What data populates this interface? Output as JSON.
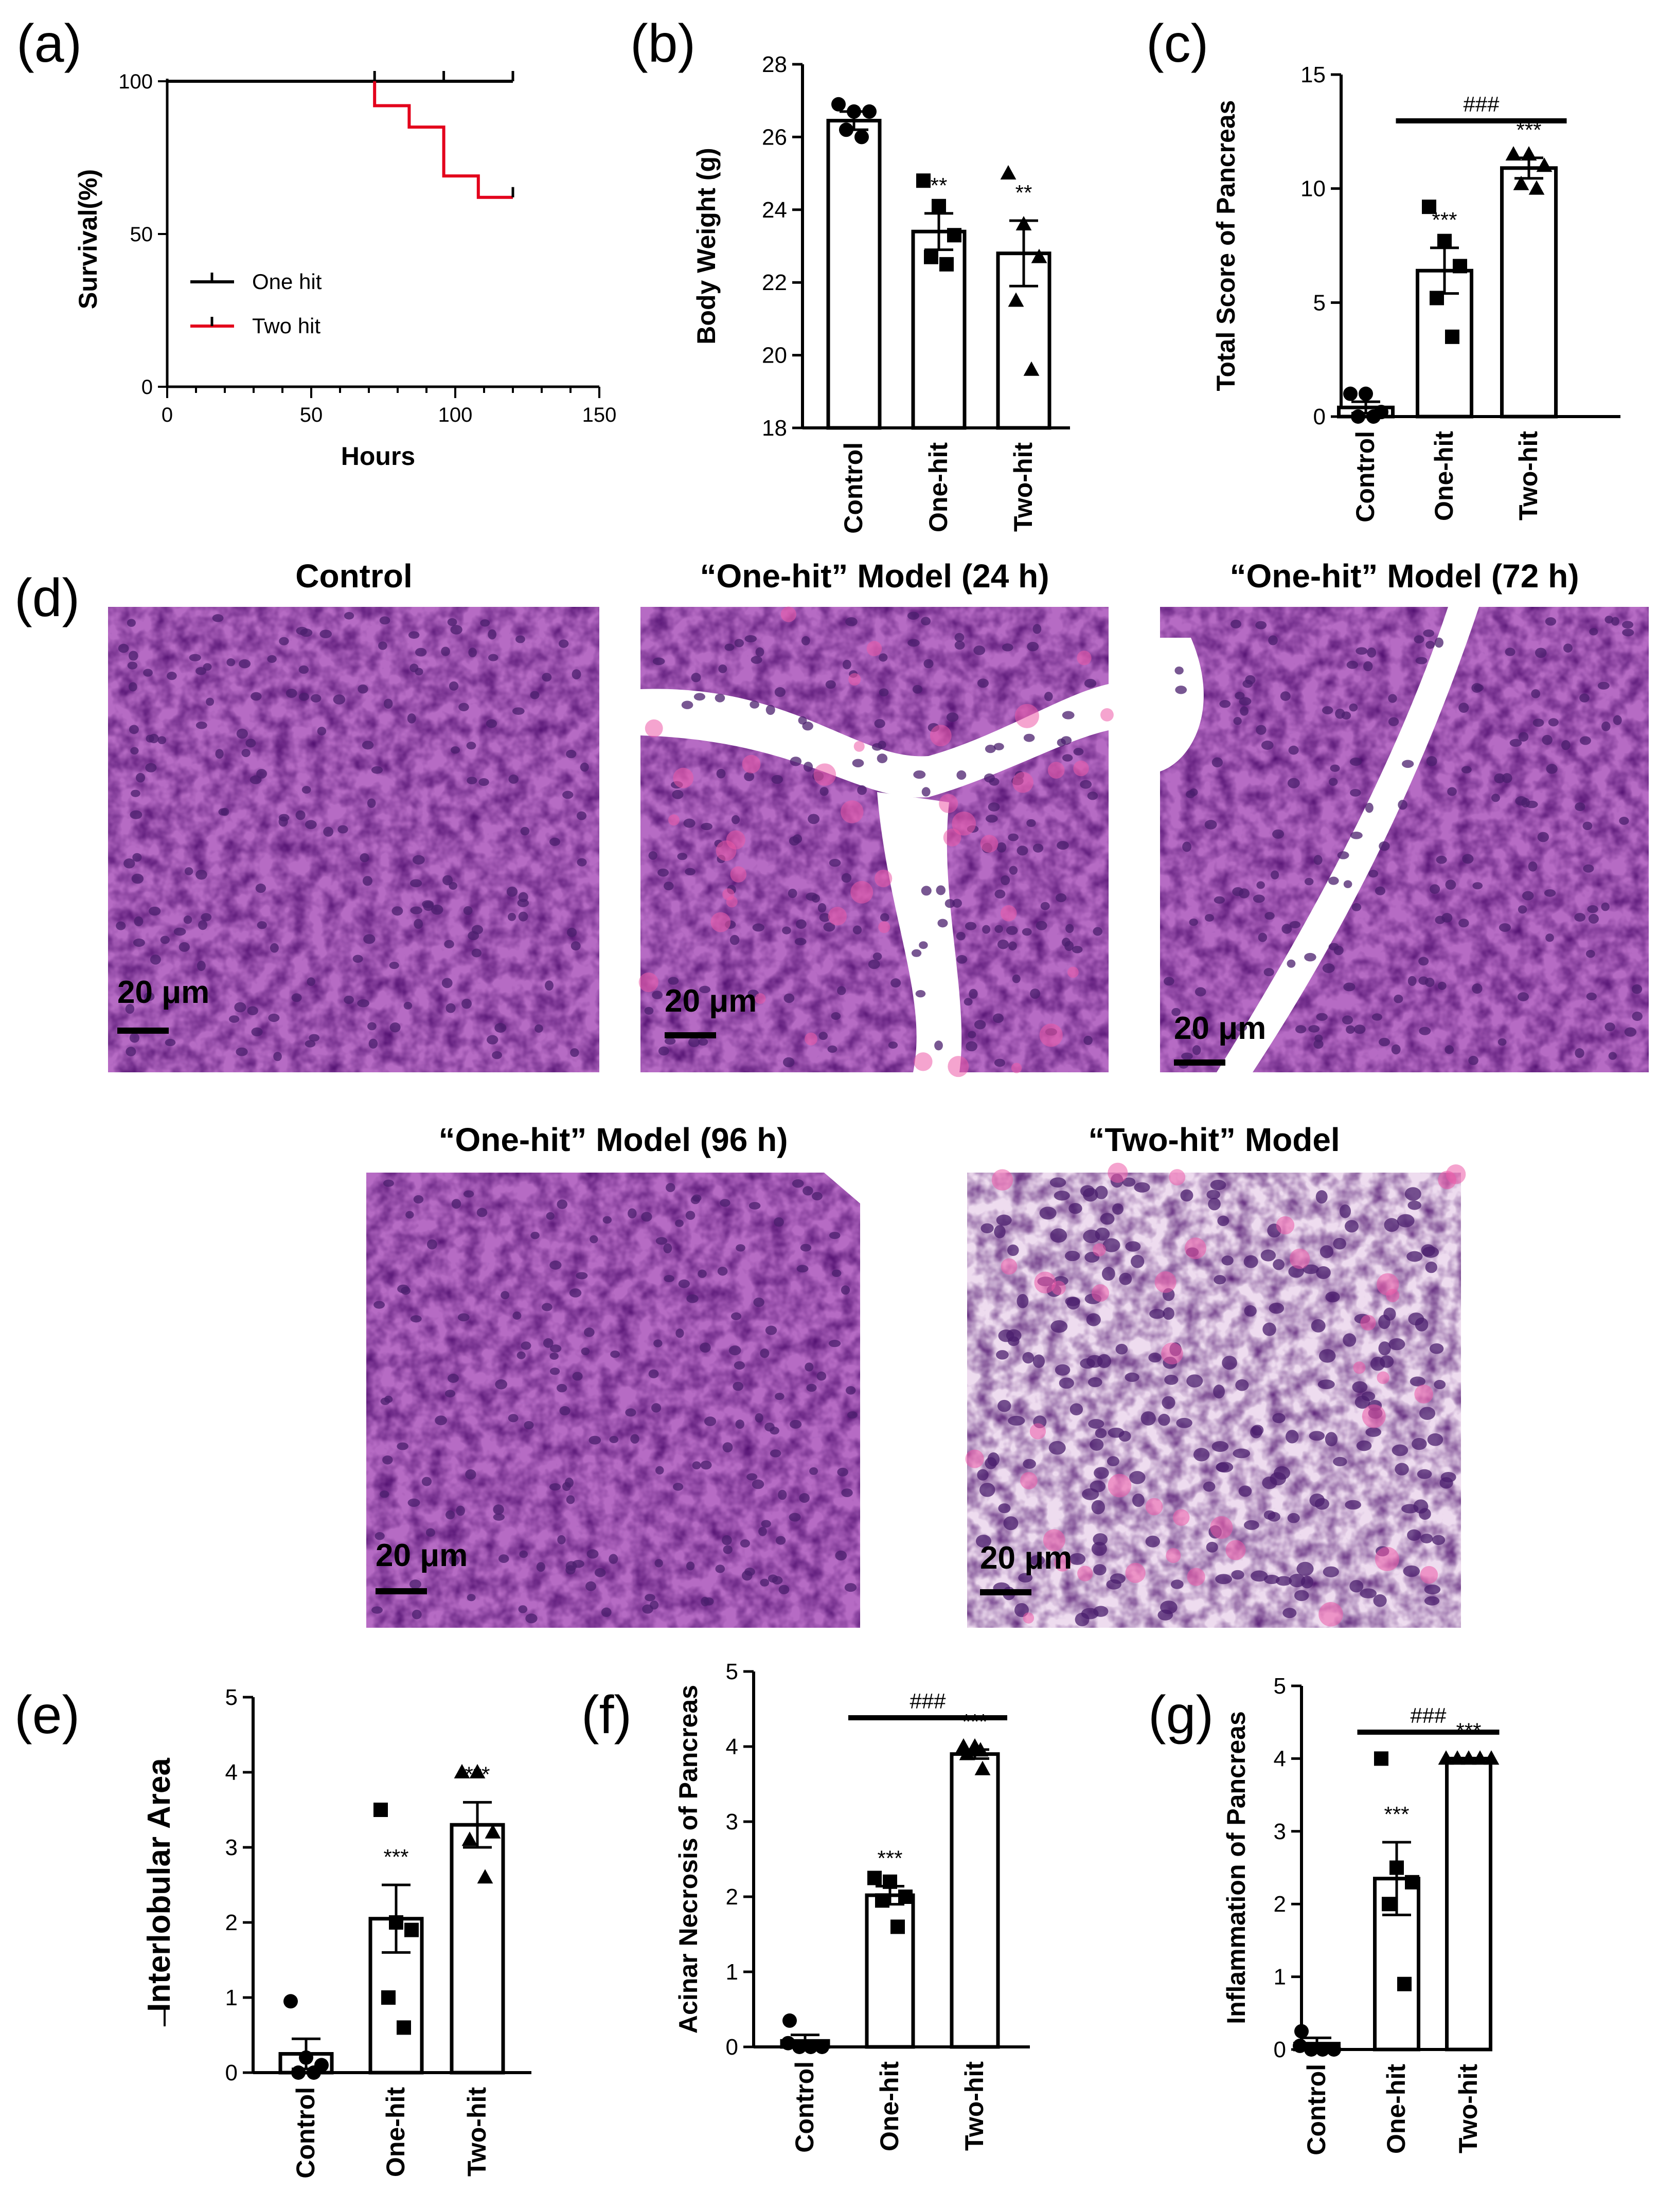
{
  "colors": {
    "one_hit": "#000000",
    "two_hit": "#e3001b",
    "tissue": "#b66bc4",
    "nuclei": "#4b1f6e",
    "stroma": "#f6eef8"
  },
  "panels": {
    "a": {
      "label": "(a)"
    },
    "b": {
      "label": "(b)"
    },
    "c": {
      "label": "(c)"
    },
    "d": {
      "label": "(d)"
    },
    "e": {
      "label": "(e)"
    },
    "f": {
      "label": "(f)"
    },
    "g": {
      "label": "(g)"
    }
  },
  "chart_data": [
    {
      "id": "a",
      "type": "line",
      "title": "",
      "xlabel": "Hours",
      "ylabel": "Survival(%)",
      "xlim": [
        0,
        150
      ],
      "ylim": [
        0,
        100
      ],
      "xticks": [
        "0",
        "50",
        "100",
        "150"
      ],
      "yticks": [
        "0",
        "50",
        "100"
      ],
      "legend": "middle-left",
      "series": [
        {
          "name": "One hit",
          "color": "#000000",
          "x": [
            0,
            120
          ],
          "y": [
            100,
            100
          ],
          "censor_x": [
            72,
            96,
            120
          ]
        },
        {
          "name": "Two hit",
          "color": "#e3001b",
          "x": [
            72,
            72,
            84,
            84,
            96,
            96,
            108,
            108,
            120
          ],
          "y": [
            100,
            92,
            92,
            85,
            85,
            69,
            69,
            62,
            62
          ],
          "censor_x": [
            120
          ]
        }
      ]
    },
    {
      "id": "b",
      "type": "bar",
      "xlabel": "",
      "ylabel": "Body Weight (g)",
      "ylim": [
        18,
        28
      ],
      "yticks": [
        "18",
        "20",
        "22",
        "24",
        "26",
        "28"
      ],
      "categories": [
        "Control",
        "One-hit",
        "Two-hit"
      ],
      "values": [
        26.45,
        23.4,
        22.8
      ],
      "errors": [
        0.25,
        0.5,
        0.9
      ],
      "points": [
        [
          26.9,
          26.7,
          26.7,
          26.2,
          26.0
        ],
        [
          24.8,
          24.1,
          23.3,
          22.7,
          22.5
        ],
        [
          25.0,
          23.6,
          22.7,
          21.5,
          19.6
        ]
      ],
      "markers": [
        "circle",
        "square",
        "triangle"
      ],
      "significance": [
        "",
        "**",
        "**"
      ]
    },
    {
      "id": "c",
      "type": "bar",
      "xlabel": "",
      "ylabel": "Total Score of Pancreas",
      "ylim": [
        0,
        15
      ],
      "yticks": [
        "0",
        "5",
        "10",
        "15"
      ],
      "categories": [
        "Control",
        "One-hit",
        "Two-hit"
      ],
      "values": [
        0.4,
        6.4,
        10.9
      ],
      "errors": [
        0.25,
        1.0,
        0.45
      ],
      "points": [
        [
          1.0,
          1.0,
          0.2,
          0.0,
          0.0
        ],
        [
          9.2,
          7.7,
          6.6,
          5.2,
          3.5
        ],
        [
          11.5,
          11.5,
          11.0,
          10.2,
          10.0
        ]
      ],
      "markers": [
        "circle",
        "square",
        "triangle"
      ],
      "significance": [
        "",
        "***",
        "***"
      ],
      "bracket": {
        "from": 1,
        "to": 2,
        "label": "###"
      }
    },
    {
      "id": "e",
      "type": "bar",
      "xlabel": "",
      "ylabel": "Interlobular Area",
      "ylim": [
        0,
        5
      ],
      "yticks": [
        "0",
        "1",
        "2",
        "3",
        "4",
        "5"
      ],
      "categories": [
        "Control",
        "One-hit",
        "Two-hit"
      ],
      "values": [
        0.25,
        2.05,
        3.3
      ],
      "errors": [
        0.2,
        0.45,
        0.3
      ],
      "points": [
        [
          0.95,
          0.2,
          0.1,
          0.0,
          0.0
        ],
        [
          3.5,
          2.0,
          1.9,
          1.0,
          0.6
        ],
        [
          4.0,
          4.0,
          3.2,
          3.1,
          2.6
        ]
      ],
      "markers": [
        "circle",
        "square",
        "triangle"
      ],
      "significance": [
        "",
        "***",
        "***"
      ]
    },
    {
      "id": "f",
      "type": "bar",
      "xlabel": "",
      "ylabel": "Acinar Necrosis of Pancreas",
      "ylim": [
        0,
        5
      ],
      "yticks": [
        "0",
        "1",
        "2",
        "3",
        "4",
        "5"
      ],
      "categories": [
        "Control",
        "One-hit",
        "Two-hit"
      ],
      "values": [
        0.08,
        2.02,
        3.9
      ],
      "errors": [
        0.08,
        0.12,
        0.06
      ],
      "points": [
        [
          0.35,
          0.05,
          0.0,
          0.0,
          0.0
        ],
        [
          2.25,
          2.2,
          2.0,
          1.95,
          1.6
        ],
        [
          4.0,
          4.0,
          3.95,
          3.9,
          3.7
        ]
      ],
      "markers": [
        "circle",
        "square",
        "triangle"
      ],
      "significance": [
        "",
        "***",
        "***"
      ],
      "bracket": {
        "from": 1,
        "to": 2,
        "label": "###"
      }
    },
    {
      "id": "g",
      "type": "bar",
      "xlabel": "",
      "ylabel": "Inflammation of Pancreas",
      "ylim": [
        0,
        5
      ],
      "yticks": [
        "0",
        "1",
        "2",
        "3",
        "4",
        "5"
      ],
      "categories": [
        "Control",
        "One-hit",
        "Two-hit"
      ],
      "values": [
        0.08,
        2.35,
        4.0
      ],
      "errors": [
        0.08,
        0.5,
        0.0
      ],
      "points": [
        [
          0.25,
          0.05,
          0.0,
          0.0,
          0.0
        ],
        [
          4.0,
          2.5,
          2.3,
          2.0,
          0.9
        ],
        [
          4.0,
          4.0,
          4.0,
          4.0,
          4.0
        ]
      ],
      "markers": [
        "circle",
        "square",
        "triangle"
      ],
      "significance": [
        "",
        "***",
        "***"
      ],
      "bracket": {
        "from": 1,
        "to": 2,
        "label": "###"
      }
    }
  ],
  "micrographs": [
    {
      "id": "control",
      "title": "Control",
      "scale_label": "20 μm"
    },
    {
      "id": "one24",
      "title": "“One-hit” Model (24 h)",
      "scale_label": "20 μm"
    },
    {
      "id": "one72",
      "title": "“One-hit” Model (72 h)",
      "scale_label": "20 μm"
    },
    {
      "id": "one96",
      "title": "“One-hit” Model (96 h)",
      "scale_label": "20 μm"
    },
    {
      "id": "two",
      "title": "“Two-hit” Model",
      "scale_label": "20 μm"
    }
  ]
}
